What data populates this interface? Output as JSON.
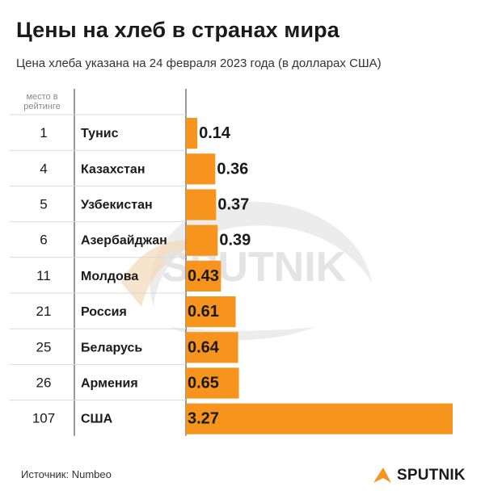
{
  "title": "Цены на хлеб в странах мира",
  "subtitle": "Цена хлеба указана на 24 февраля 2023 года (в долларах США)",
  "rank_header": "место в рейтинге",
  "source": "Источник: Numbeo",
  "watermark_text": "SPUTNIK",
  "logo_text": "SPUTNIK",
  "colors": {
    "bar": "#f7941d",
    "grid": "#d9d9d9",
    "watermark": "#e6e6e6"
  },
  "chart_data": {
    "type": "bar",
    "orientation": "horizontal",
    "title": "Цены на хлеб в странах мира",
    "subtitle": "Цена хлеба указана на 24 февраля 2023 года (в долларах США)",
    "categories": [
      "Тунис",
      "Казахстан",
      "Узбекистан",
      "Азербайджан",
      "Молдова",
      "Россия",
      "Беларусь",
      "Армения",
      "США"
    ],
    "ranks": [
      "1",
      "4",
      "5",
      "6",
      "11",
      "21",
      "25",
      "26",
      "107"
    ],
    "values": [
      0.14,
      0.36,
      0.37,
      0.39,
      0.43,
      0.61,
      0.64,
      0.65,
      3.27
    ],
    "value_labels": [
      "0.14",
      "0.36",
      "0.37",
      "0.39",
      "0.43",
      "0.61",
      "0.64",
      "0.65",
      "3.27"
    ],
    "xlim": [
      0,
      3.27
    ],
    "grid": false
  }
}
